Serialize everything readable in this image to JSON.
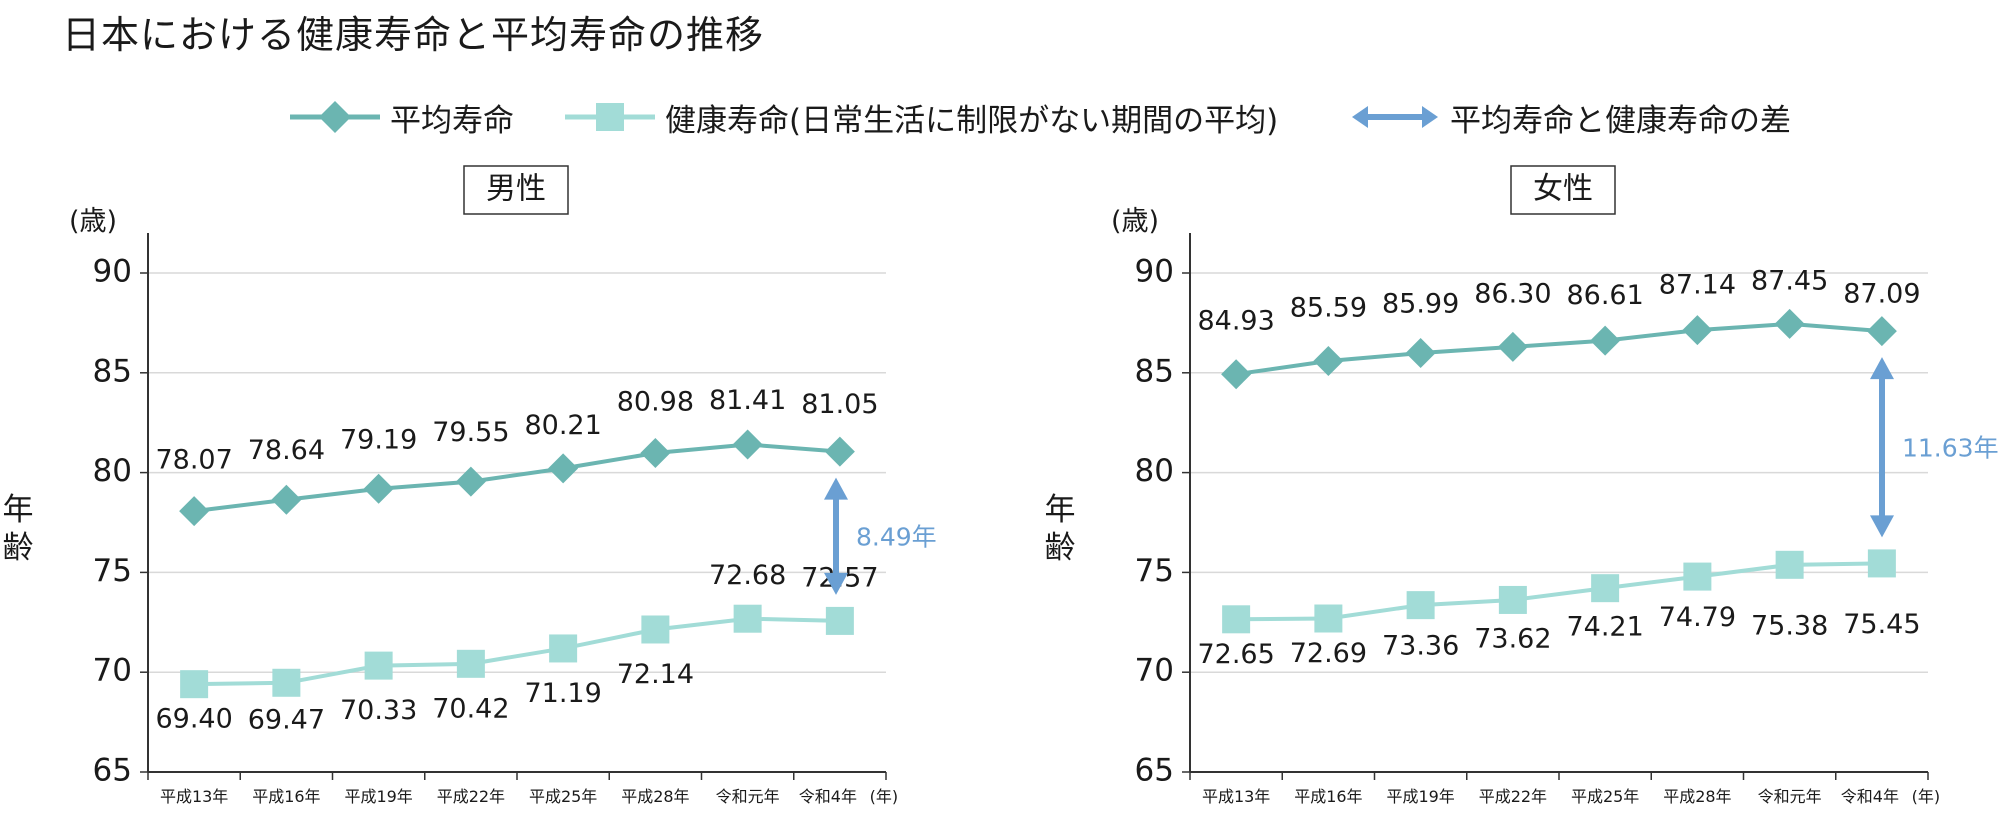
{
  "title": "日本における健康寿命と平均寿命の推移",
  "legend": {
    "life": "平均寿命",
    "health": "健康寿命(日常生活に制限がない期間の平均)",
    "gap": "平均寿命と健康寿命の差"
  },
  "colors": {
    "life": "#6bb5b1",
    "health": "#a2dcd7",
    "gap": "#6a9fd3",
    "axis": "#333333",
    "grid": "#d9d9d9"
  },
  "chart_data": [
    {
      "type": "line",
      "title": "男性",
      "ylabel": "年齢",
      "yunit": "(歳)",
      "xunit": "(年)",
      "ylim": [
        65,
        90
      ],
      "yticks": [
        65,
        70,
        75,
        80,
        85,
        90
      ],
      "grid": true,
      "categories": [
        "平成13年",
        "平成16年",
        "平成19年",
        "平成22年",
        "平成25年",
        "平成28年",
        "令和元年",
        "令和4年"
      ],
      "series": [
        {
          "name": "平均寿命",
          "values": [
            78.07,
            78.64,
            79.19,
            79.55,
            80.21,
            80.98,
            81.41,
            81.05
          ],
          "labels": [
            "78.07",
            "78.64",
            "79.19",
            "79.55",
            "80.21",
            "80.98",
            "81.41",
            "81.05"
          ]
        },
        {
          "name": "健康寿命",
          "values": [
            69.4,
            69.47,
            70.33,
            70.42,
            71.19,
            72.14,
            72.68,
            72.57
          ],
          "labels": [
            "69.40",
            "69.47",
            "70.33",
            "70.42",
            "71.19",
            "72.14",
            "72.68",
            "72.57"
          ]
        }
      ],
      "gap": {
        "label": "8.49年",
        "from": 72.57,
        "to": 81.05
      }
    },
    {
      "type": "line",
      "title": "女性",
      "ylabel": "年齢",
      "yunit": "(歳)",
      "xunit": "(年)",
      "ylim": [
        65,
        90
      ],
      "yticks": [
        65,
        70,
        75,
        80,
        85,
        90
      ],
      "grid": true,
      "categories": [
        "平成13年",
        "平成16年",
        "平成19年",
        "平成22年",
        "平成25年",
        "平成28年",
        "令和元年",
        "令和4年"
      ],
      "series": [
        {
          "name": "平均寿命",
          "values": [
            84.93,
            85.59,
            85.99,
            86.3,
            86.61,
            87.14,
            87.45,
            87.09
          ],
          "labels": [
            "84.93",
            "85.59",
            "85.99",
            "86.30",
            "86.61",
            "87.14",
            "87.45",
            "87.09"
          ]
        },
        {
          "name": "健康寿命",
          "values": [
            72.65,
            72.69,
            73.36,
            73.62,
            74.21,
            74.79,
            75.38,
            75.45
          ],
          "labels": [
            "72.65",
            "72.69",
            "73.36",
            "73.62",
            "74.21",
            "74.79",
            "75.38",
            "75.45"
          ]
        }
      ],
      "gap": {
        "label": "11.63年",
        "from": 75.45,
        "to": 87.09
      }
    }
  ]
}
